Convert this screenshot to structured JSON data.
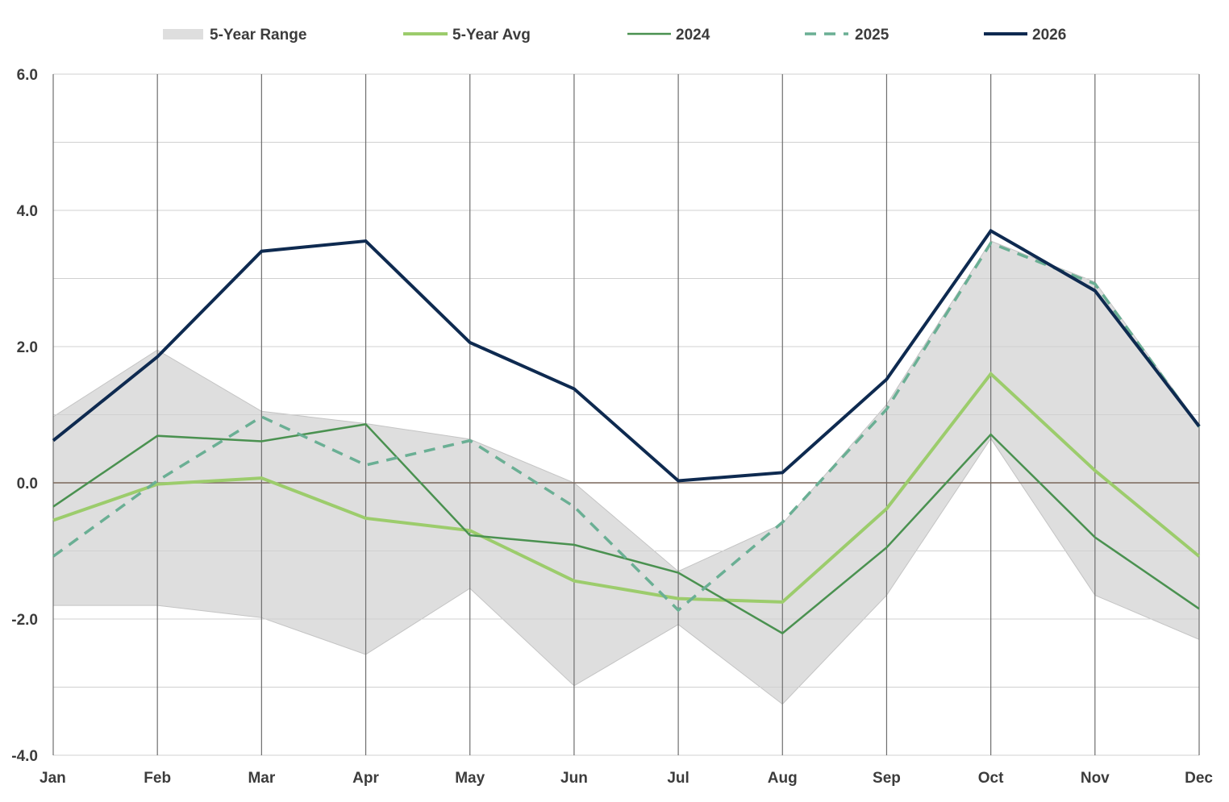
{
  "chart_data": {
    "type": "line",
    "categories": [
      "Jan",
      "Feb",
      "Mar",
      "Apr",
      "May",
      "Jun",
      "Jul",
      "Aug",
      "Sep",
      "Oct",
      "Nov",
      "Dec"
    ],
    "ylim": [
      -4.0,
      6.0
    ],
    "yticks": [
      "-4.0",
      "-2.0",
      "0.0",
      "2.0",
      "4.0",
      "6.0"
    ],
    "ytick_values": [
      -4,
      -2,
      0,
      2,
      4,
      6
    ],
    "grid": true,
    "legend_position": "top",
    "range": {
      "name": "5-Year Range",
      "high": [
        0.97,
        1.95,
        1.05,
        0.87,
        0.64,
        0.0,
        -1.3,
        -0.6,
        1.15,
        3.55,
        2.95,
        0.85
      ],
      "low": [
        -1.8,
        -1.8,
        -1.98,
        -2.52,
        -1.55,
        -2.98,
        -2.08,
        -3.25,
        -1.65,
        0.65,
        -1.65,
        -2.3
      ],
      "color": "#dedede"
    },
    "series": [
      {
        "name": "5-Year Avg",
        "values": [
          -0.55,
          -0.02,
          0.07,
          -0.52,
          -0.7,
          -1.44,
          -1.7,
          -1.75,
          -0.38,
          1.6,
          0.18,
          -1.08
        ],
        "color": "#9ccc6c",
        "style": "solid"
      },
      {
        "name": "2024",
        "values": [
          -0.35,
          0.69,
          0.61,
          0.86,
          -0.77,
          -0.91,
          -1.32,
          -2.21,
          -0.95,
          0.71,
          -0.8,
          -1.85
        ],
        "color": "#4a9150",
        "style": "solid"
      },
      {
        "name": "2025",
        "values": [
          -1.08,
          0.03,
          0.97,
          0.26,
          0.62,
          -0.35,
          -1.87,
          -0.58,
          1.08,
          3.52,
          2.92,
          0.82
        ],
        "color": "#6aaf94",
        "style": "dashed"
      },
      {
        "name": "2026",
        "values": [
          0.62,
          1.85,
          3.4,
          3.55,
          2.06,
          1.38,
          0.03,
          0.15,
          1.52,
          3.7,
          2.82,
          0.83
        ],
        "color": "#0e2a50",
        "style": "solid"
      }
    ]
  }
}
